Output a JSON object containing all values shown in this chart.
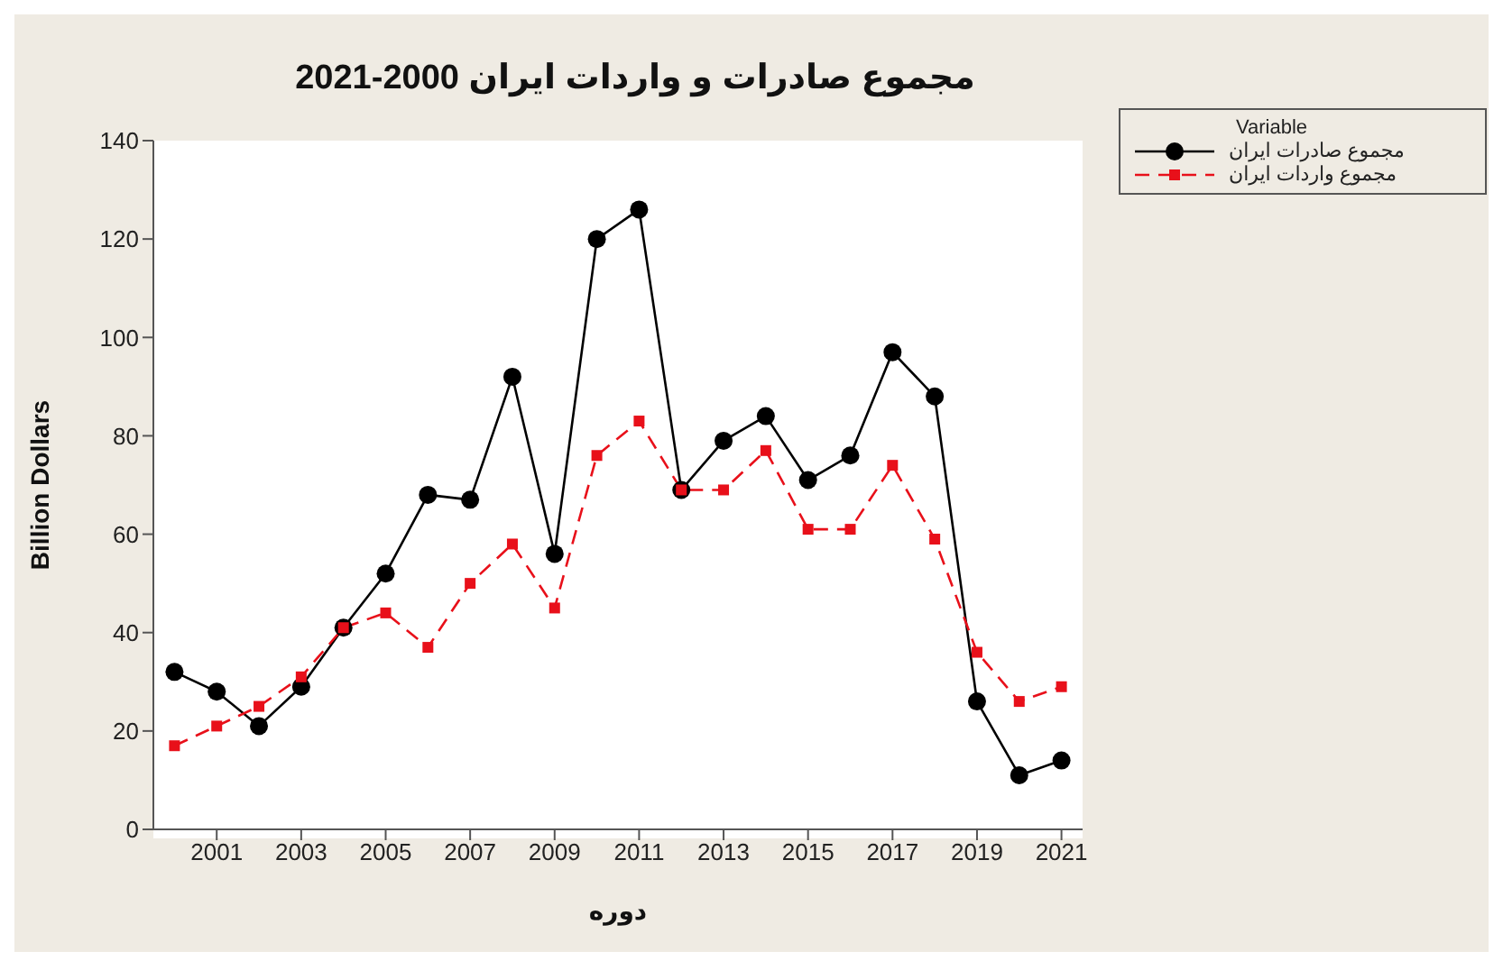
{
  "chart_data": {
    "type": "line",
    "title": "مجموع صادرات و واردات ایران 2000-2021",
    "xlabel": "دوره",
    "ylabel": "Billion Dollars",
    "legend_title": "Variable",
    "x": [
      2000,
      2001,
      2002,
      2003,
      2004,
      2005,
      2006,
      2007,
      2008,
      2009,
      2010,
      2011,
      2012,
      2013,
      2014,
      2015,
      2016,
      2017,
      2018,
      2019,
      2020,
      2021
    ],
    "series": [
      {
        "name": "مجموع صادرات ایران",
        "color": "#000000",
        "marker": "circle",
        "line_style": "solid",
        "values": [
          32,
          28,
          21,
          29,
          41,
          52,
          68,
          67,
          92,
          56,
          120,
          126,
          69,
          79,
          84,
          71,
          76,
          97,
          88,
          26,
          11,
          14
        ]
      },
      {
        "name": "مجموع واردات ایران",
        "color": "#e8101a",
        "marker": "square",
        "line_style": "dashed",
        "values": [
          17,
          21,
          25,
          31,
          41,
          44,
          37,
          50,
          58,
          45,
          76,
          83,
          69,
          69,
          77,
          61,
          61,
          74,
          59,
          36,
          26,
          29
        ]
      }
    ],
    "xlim": [
      1999.5,
      2021.5
    ],
    "xticks": [
      2001,
      2003,
      2005,
      2007,
      2009,
      2011,
      2013,
      2015,
      2017,
      2019,
      2021
    ],
    "ylim": [
      0,
      140
    ],
    "yticks": [
      0,
      20,
      40,
      60,
      80,
      100,
      120,
      140
    ],
    "grid": false,
    "legend": "top right"
  }
}
